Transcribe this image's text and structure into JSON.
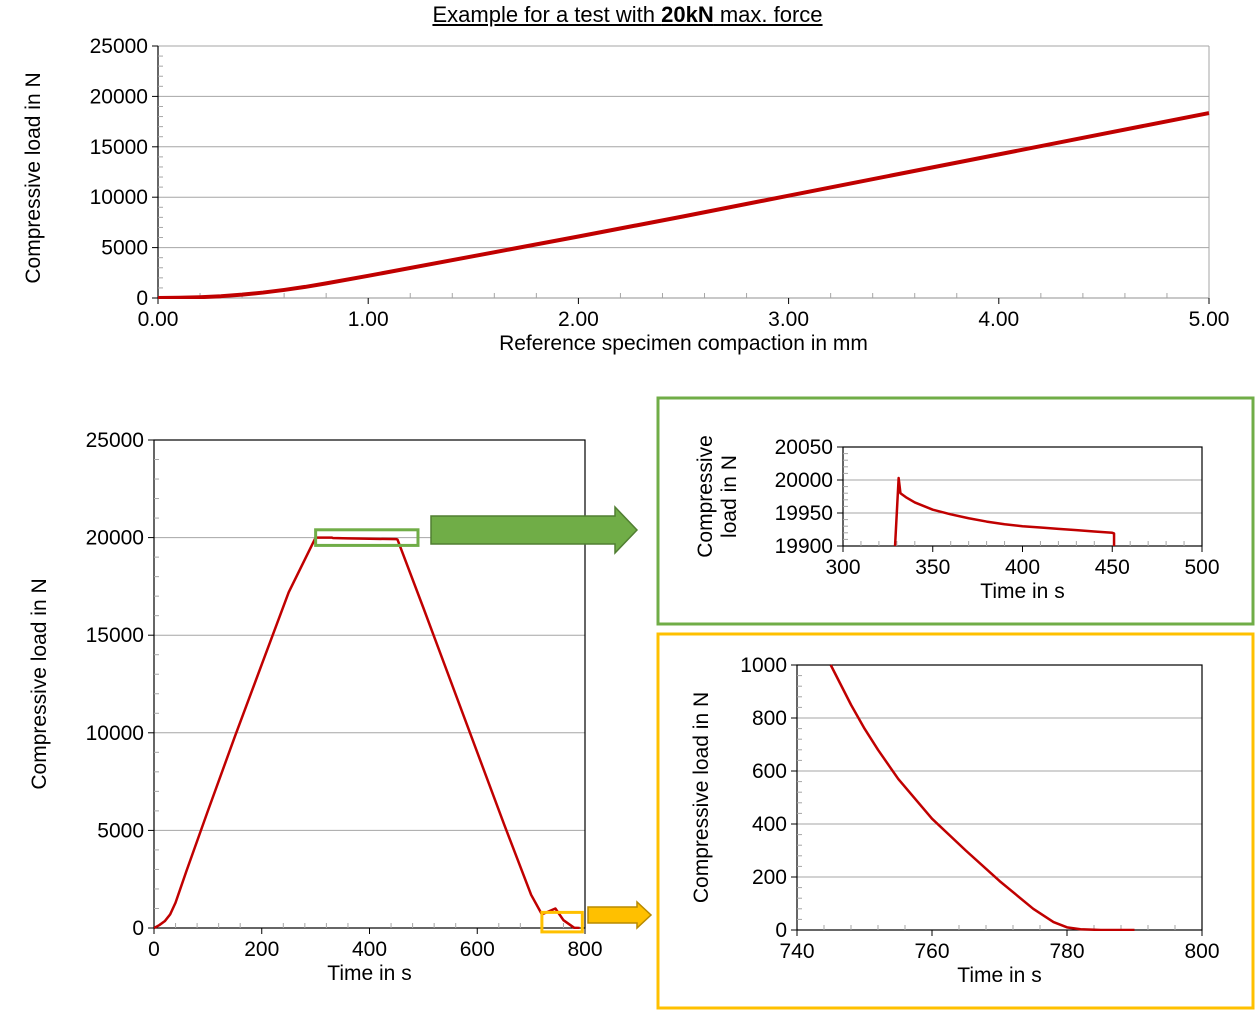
{
  "title": {
    "prefix": "Example for a test with ",
    "bold": "20kN",
    "suffix": " max. force"
  },
  "colors": {
    "series": "#c00000",
    "green_accent": "#70ad47",
    "orange_accent": "#ffc000",
    "grid": "#a6a6a6",
    "axis": "#000000"
  },
  "chart_data": [
    {
      "id": "top",
      "type": "line",
      "xlabel": "Reference specimen compaction in mm",
      "ylabel": "Compressive load in N",
      "xlim": [
        0,
        5
      ],
      "ylim": [
        0,
        25000
      ],
      "xticks": [
        0,
        1,
        2,
        3,
        4,
        5
      ],
      "xtick_labels": [
        "0.00",
        "1.00",
        "2.00",
        "3.00",
        "4.00",
        "5.00"
      ],
      "yticks": [
        0,
        5000,
        10000,
        15000,
        20000,
        25000
      ],
      "ytick_labels": [
        "0",
        "5000",
        "10000",
        "15000",
        "20000",
        "25000"
      ],
      "grid": true,
      "series": [
        {
          "x": [
            0,
            0.1,
            0.2,
            0.3,
            0.4,
            0.5,
            0.6,
            0.7,
            0.8,
            1.0,
            1.5,
            2.0,
            2.5,
            3.0,
            3.5,
            4.0,
            4.5,
            5.0
          ],
          "y": [
            0,
            20,
            80,
            180,
            330,
            540,
            800,
            1100,
            1450,
            2200,
            4150,
            6100,
            8100,
            10150,
            12200,
            14250,
            16300,
            18350
          ]
        }
      ]
    },
    {
      "id": "main",
      "type": "line",
      "xlabel": "Time in s",
      "ylabel": "Compressive load in N",
      "xlim": [
        0,
        800
      ],
      "ylim": [
        0,
        25000
      ],
      "xticks": [
        0,
        200,
        400,
        600,
        800
      ],
      "xtick_labels": [
        "0",
        "200",
        "400",
        "600",
        "800"
      ],
      "yticks": [
        0,
        5000,
        10000,
        15000,
        20000,
        25000
      ],
      "ytick_labels": [
        "0",
        "5000",
        "10000",
        "15000",
        "20000",
        "25000"
      ],
      "grid": true,
      "series": [
        {
          "x": [
            0,
            10,
            20,
            30,
            40,
            60,
            100,
            150,
            200,
            250,
            300,
            330,
            332,
            360,
            400,
            450,
            452,
            500,
            550,
            600,
            650,
            700,
            720,
            745,
            760,
            780,
            790
          ],
          "y": [
            0,
            150,
            350,
            700,
            1300,
            2900,
            6000,
            9800,
            13500,
            17200,
            20000,
            20000,
            19980,
            19960,
            19940,
            19920,
            19900,
            16400,
            12700,
            9000,
            5300,
            1700,
            700,
            1000,
            400,
            10,
            0
          ]
        }
      ],
      "annotations": [
        {
          "type": "box",
          "color": "green",
          "x_range": [
            300,
            490
          ],
          "y_range": [
            19600,
            20400
          ]
        },
        {
          "type": "box",
          "color": "orange",
          "x_range": [
            720,
            795
          ],
          "y_range": [
            -200,
            800
          ]
        }
      ]
    },
    {
      "id": "zoom_top",
      "type": "line",
      "xlabel": "Time in s",
      "ylabel": "Compressive load in N",
      "ylabel_lines": [
        "Compressive",
        "load in N"
      ],
      "xlim": [
        300,
        500
      ],
      "ylim": [
        19900,
        20050
      ],
      "xticks": [
        300,
        350,
        400,
        450,
        500
      ],
      "xtick_labels": [
        "300",
        "350",
        "400",
        "450",
        "500"
      ],
      "yticks": [
        19900,
        19950,
        20000,
        20050
      ],
      "ytick_labels": [
        "19900",
        "19950",
        "20000",
        "20050"
      ],
      "grid": true,
      "series": [
        {
          "x": [
            329,
            331,
            332,
            335,
            340,
            350,
            360,
            370,
            380,
            390,
            400,
            410,
            420,
            430,
            440,
            450,
            451,
            451
          ],
          "y": [
            19900,
            20003,
            19980,
            19974,
            19966,
            19955,
            19948,
            19942,
            19937,
            19933,
            19930,
            19928,
            19926,
            19924,
            19922,
            19920,
            19919,
            19900
          ]
        }
      ]
    },
    {
      "id": "zoom_bottom",
      "type": "line",
      "xlabel": "Time in s",
      "ylabel": "Compressive load in N",
      "xlim": [
        740,
        800
      ],
      "ylim": [
        0,
        1000
      ],
      "xticks": [
        740,
        760,
        780,
        800
      ],
      "xtick_labels": [
        "740",
        "760",
        "780",
        "800"
      ],
      "yticks": [
        0,
        200,
        400,
        600,
        800,
        1000
      ],
      "ytick_labels": [
        "0",
        "200",
        "400",
        "600",
        "800",
        "1000"
      ],
      "grid": true,
      "series": [
        {
          "x": [
            745,
            748,
            750,
            752,
            755,
            758,
            760,
            765,
            770,
            775,
            778,
            780,
            782,
            785,
            790
          ],
          "y": [
            1000,
            850,
            760,
            680,
            570,
            480,
            420,
            300,
            185,
            80,
            30,
            10,
            3,
            0,
            0
          ]
        }
      ]
    }
  ]
}
